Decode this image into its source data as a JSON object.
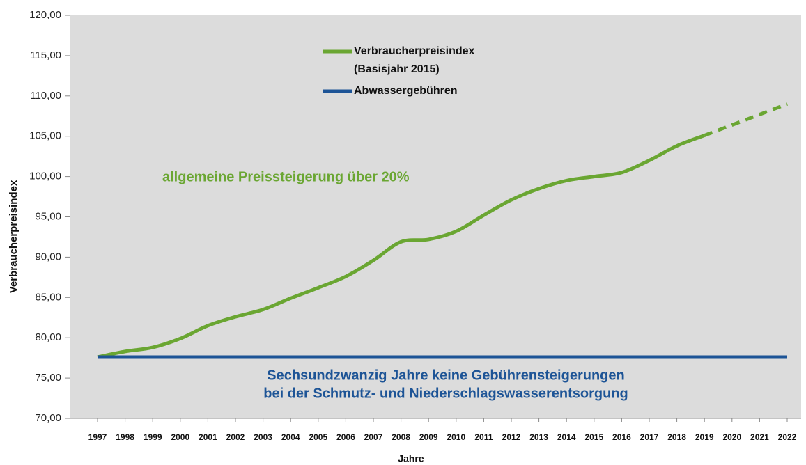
{
  "chart_data": {
    "type": "line",
    "categories": [
      "1997",
      "1998",
      "1999",
      "2000",
      "2001",
      "2002",
      "2003",
      "2004",
      "2005",
      "2006",
      "2007",
      "2008",
      "2009",
      "2010",
      "2011",
      "2012",
      "2013",
      "2014",
      "2015",
      "2016",
      "2017",
      "2018",
      "2019",
      "2020",
      "2021",
      "2022"
    ],
    "series": [
      {
        "name": "Verbraucherpreisindex (Basisjahr 2015)",
        "color": "#6aa632",
        "values": [
          77.6,
          78.3,
          78.8,
          79.9,
          81.5,
          82.6,
          83.5,
          84.9,
          86.2,
          87.6,
          89.6,
          91.9,
          92.2,
          93.2,
          95.2,
          97.1,
          98.5,
          99.5,
          100.0,
          100.5,
          102.0,
          103.8,
          105.1,
          106.4,
          107.7,
          109.0
        ],
        "dashed_from": "2019"
      },
      {
        "name": "Abwassergebühren",
        "color": "#1d5496",
        "values": [
          77.6,
          77.6,
          77.6,
          77.6,
          77.6,
          77.6,
          77.6,
          77.6,
          77.6,
          77.6,
          77.6,
          77.6,
          77.6,
          77.6,
          77.6,
          77.6,
          77.6,
          77.6,
          77.6,
          77.6,
          77.6,
          77.6,
          77.6,
          77.6,
          77.6,
          77.6
        ]
      }
    ],
    "ylabel": "Verbraucherpreisindex",
    "xlabel": "Jahre",
    "ylim": [
      70,
      120
    ],
    "yticks": [
      {
        "value": 70,
        "label": "70,00"
      },
      {
        "value": 75,
        "label": "75,00"
      },
      {
        "value": 80,
        "label": "80,00"
      },
      {
        "value": 85,
        "label": "85,00"
      },
      {
        "value": 90,
        "label": "90,00"
      },
      {
        "value": 95,
        "label": "95,00"
      },
      {
        "value": 100,
        "label": "100,00"
      },
      {
        "value": 105,
        "label": "105,00"
      },
      {
        "value": 110,
        "label": "110,00"
      },
      {
        "value": 115,
        "label": "115,00"
      },
      {
        "value": 120,
        "label": "120,00"
      }
    ],
    "annotations": [
      {
        "text": "allgemeine Preissteigerung über 20%",
        "color": "#6aa632"
      },
      {
        "text": "Sechsundzwanzig Jahre keine Gebührensteigerungen",
        "color": "#1d5496"
      },
      {
        "text": "bei der Schmutz- und Niederschlagswasserentsorgung",
        "color": "#1d5496"
      }
    ],
    "background": "#dcdcdc"
  }
}
